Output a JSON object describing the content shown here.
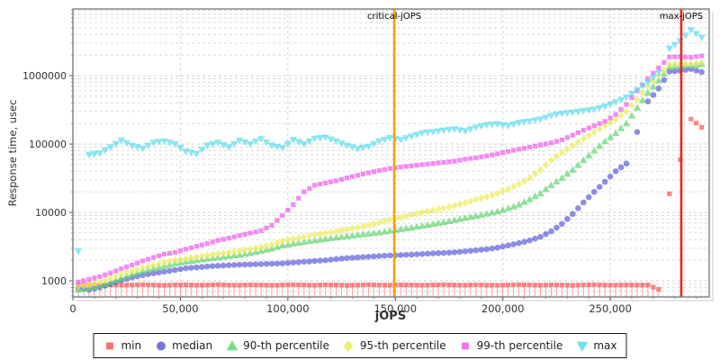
{
  "chart_data": {
    "type": "scatter",
    "title": "",
    "xlabel": "jOPS",
    "ylabel": "Response time, usec",
    "y_scale": "log",
    "grid": true,
    "legend_position": "bottom",
    "xlim": [
      0,
      296000
    ],
    "ylim": [
      580,
      9440000
    ],
    "x_ticks": [
      "0",
      "50,000",
      "100,000",
      "150,000",
      "200,000",
      "250,000"
    ],
    "x_tick_values": [
      0,
      50000,
      100000,
      150000,
      200000,
      250000
    ],
    "y_ticks": [
      "1000",
      "10000",
      "100000",
      "1000000"
    ],
    "y_tick_values": [
      1000,
      10000,
      100000,
      1000000
    ],
    "x": [
      2500,
      7500,
      12500,
      17500,
      22500,
      27500,
      32500,
      37500,
      42500,
      47500,
      52500,
      57500,
      62500,
      67500,
      72500,
      77500,
      82500,
      87500,
      92500,
      97500,
      102500,
      107500,
      112500,
      117500,
      122500,
      127500,
      132500,
      137500,
      142500,
      147500,
      152500,
      157500,
      162500,
      167500,
      172500,
      177500,
      182500,
      187500,
      192500,
      197500,
      202500,
      207500,
      212500,
      217500,
      222500,
      227500,
      232500,
      237500,
      242500,
      247500,
      252500,
      257500,
      262500,
      267500,
      272500,
      277500,
      282500,
      287500,
      292500
    ],
    "series": [
      {
        "name": "min",
        "marker": "square",
        "color": "#fa5252",
        "stem": true,
        "values": [
          870,
          880,
          860,
          875,
          865,
          870,
          880,
          870,
          860,
          872,
          876,
          864,
          870,
          882,
          868,
          866,
          874,
          870,
          862,
          870,
          878,
          872,
          864,
          876,
          870,
          860,
          868,
          880,
          870,
          866,
          874,
          870,
          862,
          872,
          878,
          870,
          864,
          876,
          868,
          862,
          870,
          880,
          872,
          864,
          874,
          870,
          860,
          872,
          878,
          868,
          866,
          872,
          870,
          870,
          750,
          18700,
          59000,
          232000,
          176000
        ]
      },
      {
        "name": "median",
        "marker": "circle",
        "color": "#5c5cdc",
        "stem": false,
        "values": [
          790,
          740,
          800,
          900,
          1010,
          1120,
          1210,
          1290,
          1360,
          1440,
          1530,
          1570,
          1620,
          1660,
          1690,
          1720,
          1740,
          1760,
          1780,
          1800,
          1850,
          1900,
          1950,
          2000,
          2080,
          2150,
          2200,
          2250,
          2300,
          2350,
          2380,
          2420,
          2470,
          2520,
          2560,
          2620,
          2700,
          2800,
          2900,
          3050,
          3300,
          3550,
          3900,
          4400,
          5300,
          6800,
          9500,
          14000,
          20000,
          28000,
          40000,
          52000,
          150000,
          420000,
          650000,
          1150000,
          1180000,
          1250000,
          1130000
        ]
      },
      {
        "name": "90-th percentile",
        "marker": "triangle-up",
        "color": "#5ed46e",
        "stem": false,
        "values": [
          740,
          780,
          850,
          950,
          1100,
          1250,
          1400,
          1530,
          1650,
          1800,
          1900,
          2000,
          2100,
          2200,
          2300,
          2400,
          2550,
          2750,
          2950,
          3300,
          3500,
          3700,
          3900,
          4100,
          4300,
          4500,
          4700,
          4900,
          5100,
          5400,
          5700,
          6000,
          6400,
          6800,
          7200,
          7700,
          8300,
          8900,
          9600,
          10300,
          11500,
          13000,
          15500,
          19000,
          25000,
          32000,
          42000,
          58000,
          80000,
          110000,
          145000,
          200000,
          340000,
          560000,
          850000,
          1350000,
          1400000,
          1420000,
          1480000
        ]
      },
      {
        "name": "95-th percentile",
        "marker": "diamond",
        "color": "#ebeb54",
        "stem": false,
        "values": [
          830,
          880,
          960,
          1080,
          1250,
          1400,
          1550,
          1700,
          1850,
          2000,
          2100,
          2250,
          2350,
          2500,
          2600,
          2750,
          2900,
          3100,
          3400,
          3800,
          4100,
          4400,
          4700,
          5000,
          5300,
          5600,
          6000,
          6500,
          7100,
          7800,
          8500,
          9200,
          10000,
          10800,
          11500,
          12500,
          13800,
          15500,
          17000,
          19000,
          22000,
          26000,
          32000,
          42000,
          58000,
          75000,
          95000,
          120000,
          150000,
          185000,
          230000,
          300000,
          450000,
          700000,
          1000000,
          1450000,
          1500000,
          1480000,
          1550000
        ]
      },
      {
        "name": "99-th percentile",
        "marker": "square",
        "color": "#ee58ee",
        "stem": false,
        "values": [
          960,
          1050,
          1150,
          1300,
          1500,
          1700,
          1950,
          2200,
          2450,
          2600,
          2900,
          3200,
          3500,
          3900,
          4200,
          4600,
          5000,
          5400,
          6500,
          9000,
          13000,
          20000,
          25000,
          27000,
          29000,
          32000,
          35000,
          38000,
          41000,
          44000,
          46000,
          48000,
          50000,
          52000,
          54000,
          56000,
          60000,
          63000,
          67000,
          72000,
          78000,
          84000,
          90000,
          97000,
          104000,
          115000,
          135000,
          160000,
          185000,
          215000,
          270000,
          380000,
          600000,
          900000,
          1300000,
          1870000,
          1900000,
          1850000,
          1950000
        ]
      },
      {
        "name": "max",
        "marker": "triangle-down",
        "color": "#58dcec",
        "stem": false,
        "values": [
          2700,
          70000,
          73000,
          90000,
          113000,
          95000,
          86000,
          105000,
          110000,
          100000,
          78000,
          72000,
          95000,
          105000,
          90000,
          112000,
          100000,
          118000,
          95000,
          88000,
          115000,
          100000,
          120000,
          125000,
          110000,
          95000,
          85000,
          92000,
          110000,
          123000,
          115000,
          130000,
          145000,
          150000,
          158000,
          165000,
          155000,
          175000,
          190000,
          195000,
          185000,
          205000,
          215000,
          230000,
          260000,
          280000,
          290000,
          305000,
          320000,
          355000,
          410000,
          480000,
          620000,
          800000,
          1100000,
          2500000,
          3200000,
          4650000,
          3600000
        ]
      }
    ],
    "annotations": [
      {
        "label": "critical-jOPS",
        "x": 149500,
        "color": "#f0a202"
      },
      {
        "label": "max-jOPS",
        "x": 283000,
        "color": "#f51f1f"
      }
    ]
  }
}
